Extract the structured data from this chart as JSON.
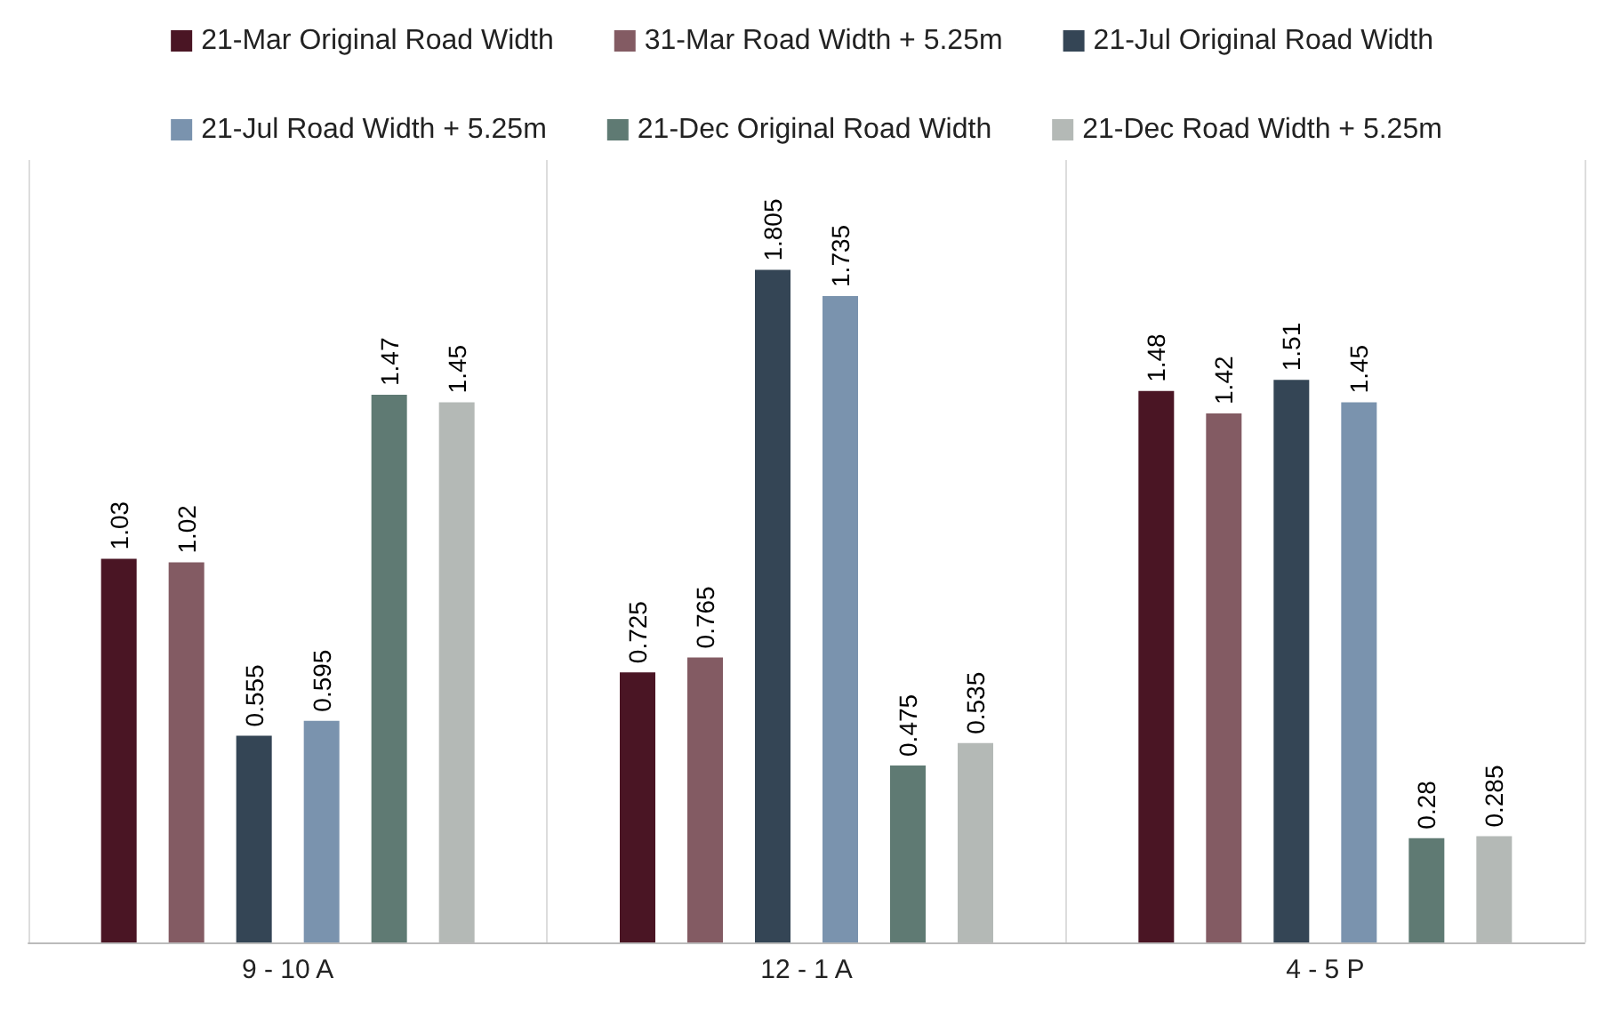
{
  "chart_data": {
    "type": "bar",
    "categories": [
      "9 - 10 A",
      "12 - 1 A",
      "4 - 5 P"
    ],
    "series": [
      {
        "name": "21-Mar Original Road Width",
        "color": "#4a1524",
        "values": [
          1.03,
          0.725,
          1.48
        ]
      },
      {
        "name": "31-Mar Road Width + 5.25m",
        "color": "#835b63",
        "values": [
          1.02,
          0.765,
          1.42
        ]
      },
      {
        "name": "21-Jul Original Road Width",
        "color": "#344555",
        "values": [
          0.555,
          1.805,
          1.51
        ]
      },
      {
        "name": "21-Jul Road Width + 5.25m",
        "color": "#7a93ae",
        "values": [
          0.595,
          1.735,
          1.45
        ]
      },
      {
        "name": "21-Dec Original Road Width",
        "color": "#5f7a73",
        "values": [
          1.47,
          0.475,
          0.28
        ]
      },
      {
        "name": "21-Dec Road Width + 5.25m",
        "color": "#b4b9b6",
        "values": [
          1.45,
          0.535,
          0.285
        ]
      }
    ],
    "data_labels": true,
    "legend": "top",
    "grid": "x",
    "tick_labels": "x"
  }
}
